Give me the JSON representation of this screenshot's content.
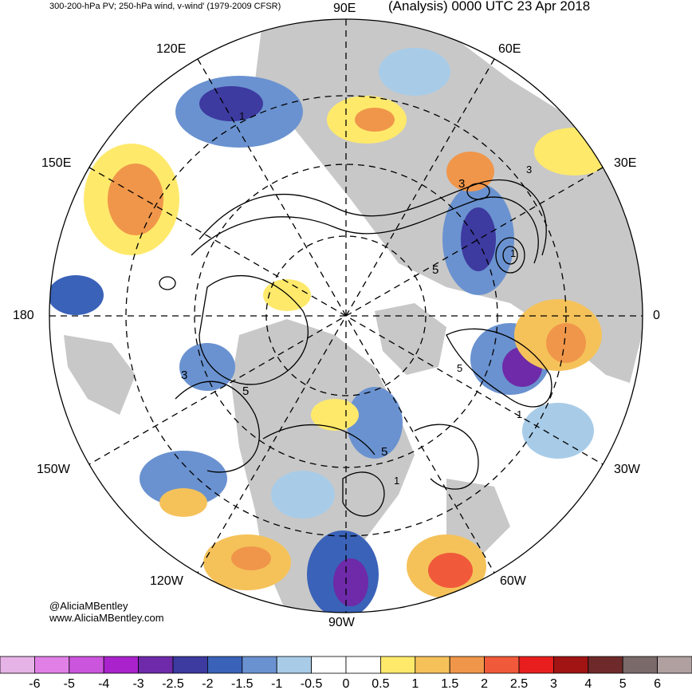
{
  "header": {
    "left_title": "300-200-hPa PV; 250-hPa wind, v-wind' (1979-2009 CFSR)",
    "right_title": "(Analysis) 0000 UTC 23 Apr 2018"
  },
  "longitude_labels": {
    "lon_90e": "90E",
    "lon_120e": "120E",
    "lon_60e": "60E",
    "lon_150e": "150E",
    "lon_30e": "30E",
    "lon_180": "180",
    "lon_0": "0",
    "lon_150w": "150W",
    "lon_30w": "30W",
    "lon_120w": "120W",
    "lon_60w": "60W",
    "lon_90w": "90W"
  },
  "contour_labels": [
    "1",
    "3",
    "5",
    "3",
    "5",
    "5",
    "3",
    "1",
    "1",
    "5",
    "1"
  ],
  "credit": {
    "handle": "@AliciaMBentley",
    "site": "www.AliciaMBentley.com"
  },
  "colorbar": {
    "ticks": [
      "-6",
      "-5",
      "-4",
      "-3",
      "-2.5",
      "-2",
      "-1.5",
      "-1",
      "-0.5",
      "0",
      "0.5",
      "1",
      "1.5",
      "2",
      "2.5",
      "3",
      "4",
      "5",
      "6"
    ],
    "colors": [
      "#e6b3e6",
      "#e080e6",
      "#cc55dd",
      "#aa22cc",
      "#6e2aa8",
      "#3d3aa0",
      "#3a62b8",
      "#6a92d0",
      "#a8cce8",
      "#ffffff",
      "#ffffff",
      "#ffe96b",
      "#f5c25a",
      "#f0964a",
      "#f05a3a",
      "#e81e1e",
      "#a01414",
      "#6e2a2a",
      "#7a6a6a",
      "#b0a0a0"
    ]
  },
  "map": {
    "projection": "north-polar-stereographic",
    "land_color": "#c8c8c8",
    "ocean_color": "#ffffff",
    "negative_pv_color": "#3a62b8",
    "positive_pv_color": "#f0964a"
  }
}
